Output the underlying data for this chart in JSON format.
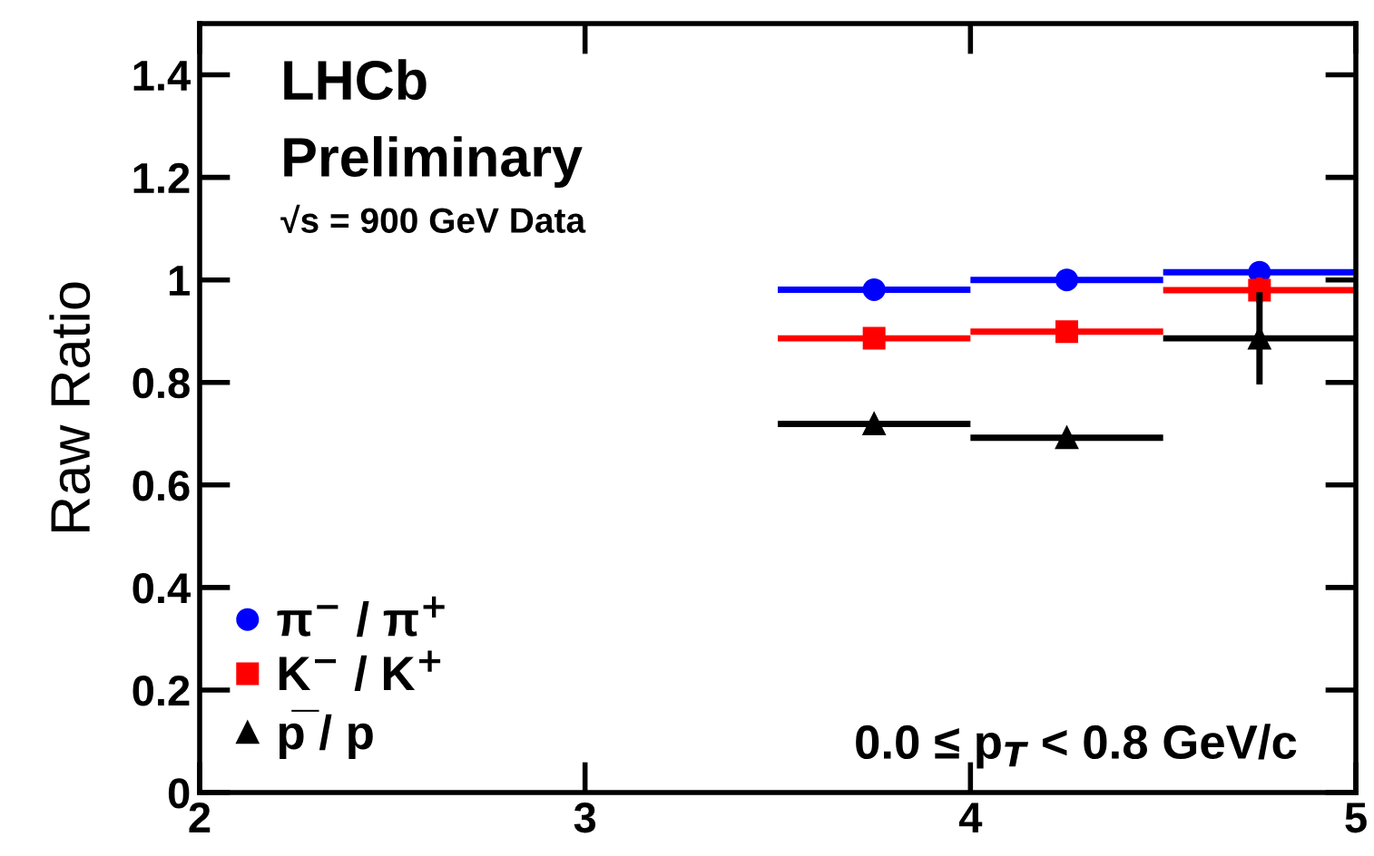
{
  "chart_data": {
    "type": "scatter",
    "ylabel": "Raw Ratio",
    "x": [
      3.75,
      4.25,
      4.75
    ],
    "series": [
      {
        "name": "π$^{−}$ / π$^{+}$",
        "color": "#0000ff",
        "marker": "circle",
        "values": [
          0.981,
          1.0,
          1.015
        ],
        "xerrors": [
          0.25,
          0.25,
          0.25
        ]
      },
      {
        "name": "K$^{−}$ / K$^{+}$",
        "color": "#ff0000",
        "marker": "square",
        "values": [
          0.886,
          0.899,
          0.98
        ],
        "xerrors": [
          0.25,
          0.25,
          0.25
        ],
        "errors": [
          null,
          null,
          0.025
        ]
      },
      {
        "name": "p̅ / p",
        "color": "#000000",
        "marker": "triangle",
        "values": [
          0.719,
          0.692,
          0.886
        ],
        "xerrors": [
          0.25,
          0.25,
          0.25
        ],
        "errors": [
          null,
          null,
          0.09
        ]
      }
    ],
    "xlim": [
      2,
      5
    ],
    "xticks": [
      2,
      3,
      4,
      5
    ],
    "ylim": [
      0,
      1.5
    ],
    "yticks": [
      0,
      0.2,
      0.4,
      0.6,
      0.8,
      {
        "value": 1,
        "label": "1"
      },
      1.2,
      1.4
    ],
    "grid": false,
    "legend": "bottom left",
    "annotations": [
      "LHCb",
      "Preliminary",
      "√s = 900 GeV Data",
      "0.0 ≤ p$_{T}$ < 0.8 GeV/c"
    ]
  }
}
